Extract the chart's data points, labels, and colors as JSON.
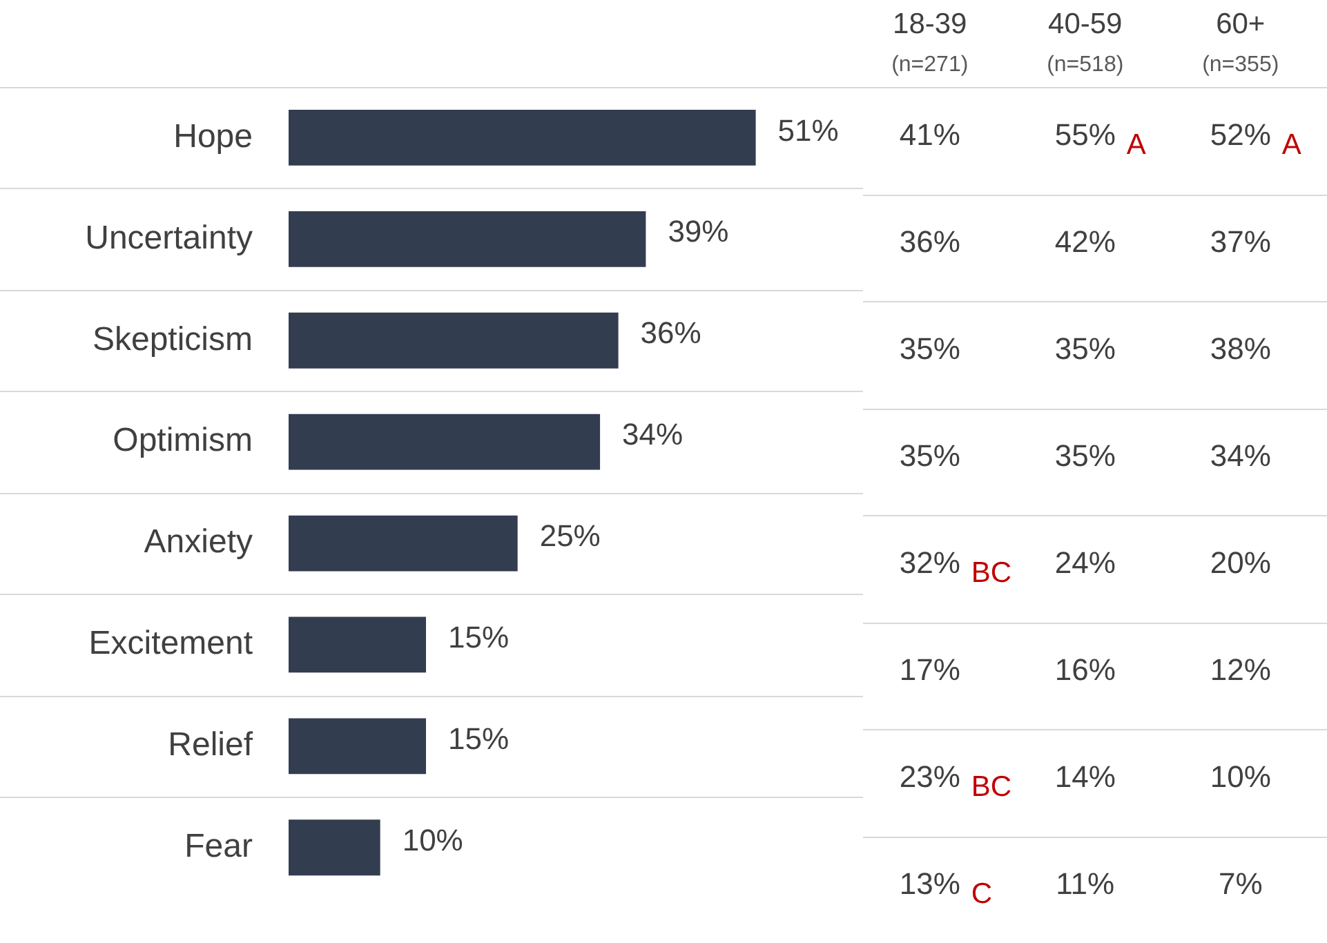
{
  "chart_data": [
    {
      "type": "bar",
      "orientation": "horizontal",
      "categories": [
        "Hope",
        "Uncertainty",
        "Skepticism",
        "Optimism",
        "Anxiety",
        "Excitement",
        "Relief",
        "Fear"
      ],
      "values": [
        51,
        39,
        36,
        34,
        25,
        15,
        15,
        10
      ],
      "value_labels": [
        "51%",
        "39%",
        "36%",
        "34%",
        "25%",
        "15%",
        "15%",
        "10%"
      ],
      "color": "#333d50",
      "grid": "y",
      "tick_labels": "y"
    },
    {
      "type": "heatmap",
      "categories": [
        "18-39\n(n=271)",
        "40-59\n(n=518)",
        "60+\n(n=355)"
      ],
      "y_categories": [
        null,
        null,
        null,
        null,
        null,
        null,
        null,
        null
      ],
      "cells": [
        [
          41,
          55,
          52
        ],
        [
          36,
          42,
          37
        ],
        [
          35,
          35,
          38
        ],
        [
          35,
          35,
          34
        ],
        [
          32,
          24,
          20
        ],
        [
          17,
          16,
          12
        ],
        [
          23,
          14,
          10
        ],
        [
          13,
          11,
          7
        ]
      ],
      "cell_labels": [
        [
          "41%",
          "55% A",
          "52% A"
        ],
        [
          "36%",
          "42%",
          "37%"
        ],
        [
          "35%",
          "35%",
          "38%"
        ],
        [
          "35%",
          "35%",
          "34%"
        ],
        [
          "32% BC",
          "24%",
          "20%"
        ],
        [
          "17%",
          "16%",
          "12%"
        ],
        [
          "23% BC",
          "14%",
          "10%"
        ],
        [
          "13% C",
          "11%",
          "7%"
        ]
      ],
      "grid": "y"
    }
  ]
}
